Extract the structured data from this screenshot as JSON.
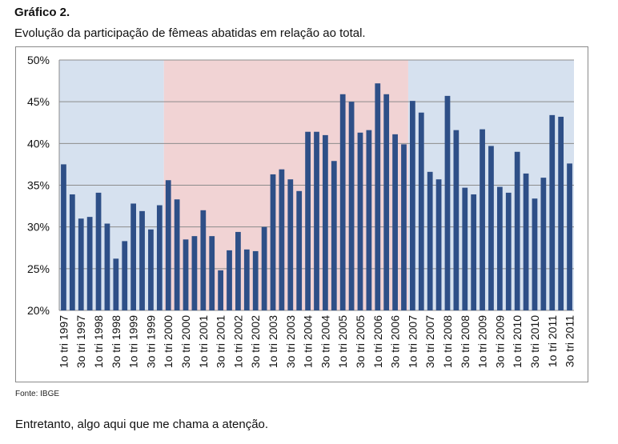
{
  "heading": "Gráfico 2.",
  "caption": "Evolução da participação de fêmeas abatidas em relação ao total.",
  "source": "Fonte: IBGE",
  "footer_text": "Entretanto, algo aqui que me chama a atenção.",
  "colors": {
    "bar": "#2e4f87",
    "band_blue": "#d6e1ef",
    "band_red": "#f1d3d4",
    "grid": "#8c8c8c"
  },
  "chart_data": {
    "type": "bar",
    "title": "",
    "xlabel": "",
    "ylabel": "",
    "ylim": [
      0.2,
      0.5
    ],
    "yticks": [
      "20%",
      "25%",
      "30%",
      "35%",
      "40%",
      "45%",
      "50%"
    ],
    "grid": true,
    "categories": [
      "1o tri 1997",
      "2o tri 1997",
      "3o tri 1997",
      "4o tri 1997",
      "1o tri 1998",
      "2o tri 1998",
      "3o tri 1998",
      "4o tri 1998",
      "1o tri 1999",
      "2o tri 1999",
      "3o tri 1999",
      "4o tri 1999",
      "1o tri 2000",
      "2o tri 2000",
      "3o tri 2000",
      "4o tri 2000",
      "1o tri 2001",
      "2o tri 2001",
      "3o tri 2001",
      "4o tri 2001",
      "1o tri 2002",
      "2o tri 2002",
      "3o tri 2002",
      "4o tri 2002",
      "1o tri 2003",
      "2o tri 2003",
      "3o tri 2003",
      "4o tri 2003",
      "1o tri 2004",
      "2o tri 2004",
      "3o tri 2004",
      "4o tri 2004",
      "1o tri 2005",
      "2o tri 2005",
      "3o tri 2005",
      "4o tri 2005",
      "1o tri 2006",
      "2o tri 2006",
      "3o tri 2006",
      "4o tri 2006",
      "1o tri 2007",
      "2o tri 2007",
      "3o tri 2007",
      "4o tri 2007",
      "1o tri 2008",
      "2o tri 2008",
      "3o tri 2008",
      "4o tri 2008",
      "1o tri 2009",
      "2o tri 2009",
      "3o tri 2009",
      "4o tri 2009",
      "1o tri 2010",
      "2o tri 2010",
      "3o tri 2010",
      "4o tri 2010",
      "1o tri 2011",
      "2o tri 2011",
      "3o tri 2011"
    ],
    "tick_labels": [
      "1o tri 1997",
      "3o tri 1997",
      "1o tri 1998",
      "3o tri 1998",
      "1o tri 1999",
      "3o tri 1999",
      "1o tri 2000",
      "3o tri 2000",
      "1o tri 2001",
      "3o tri 2001",
      "1o tri 2002",
      "3o tri 2002",
      "1o tri 2003",
      "3o tri 2003",
      "1o tri 2004",
      "3o tri 2004",
      "1o tri 2005",
      "3o tri 2005",
      "1o tri 2006",
      "3o tri 2006",
      "1o tri 2007",
      "3o tri 2007",
      "1o tri 2008",
      "3o tri 2008",
      "1o tri 2009",
      "3o tri 2009",
      "1o tri 2010",
      "3o tri 2010",
      "1o tri 2011",
      "3o tri 2011"
    ],
    "values": [
      0.375,
      0.339,
      0.31,
      0.312,
      0.341,
      0.304,
      0.262,
      0.283,
      0.328,
      0.319,
      0.297,
      0.326,
      0.356,
      0.333,
      0.285,
      0.289,
      0.32,
      0.289,
      0.248,
      0.272,
      0.294,
      0.273,
      0.271,
      0.3,
      0.363,
      0.369,
      0.357,
      0.343,
      0.414,
      0.414,
      0.41,
      0.379,
      0.459,
      0.45,
      0.413,
      0.416,
      0.472,
      0.459,
      0.411,
      0.399,
      0.451,
      0.437,
      0.366,
      0.357,
      0.457,
      0.416,
      0.347,
      0.339,
      0.417,
      0.397,
      0.348,
      0.341,
      0.39,
      0.364,
      0.334,
      0.359,
      0.434,
      0.432,
      0.376
    ],
    "bands": [
      {
        "from": "1o tri 1997",
        "to": "4o tri 1999",
        "color": "blue"
      },
      {
        "from": "1o tri 2000",
        "to": "4o tri 2006",
        "color": "red"
      },
      {
        "from": "1o tri 2007",
        "to": "3o tri 2011",
        "color": "blue"
      }
    ]
  }
}
